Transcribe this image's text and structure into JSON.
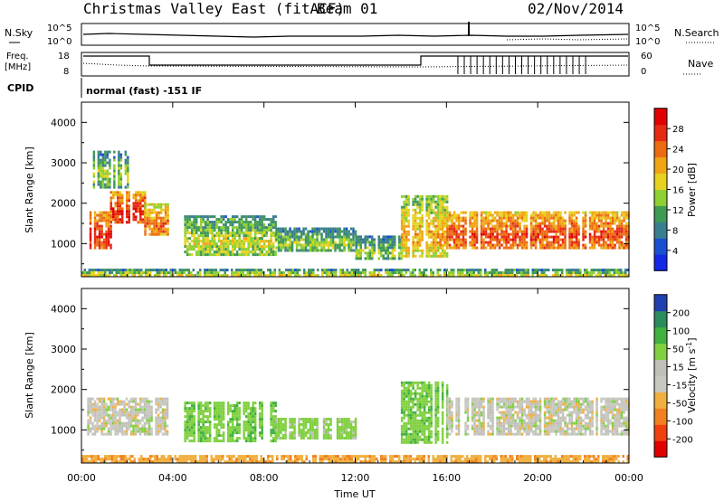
{
  "header": {
    "title": "Christmas Valley East (fitACF)",
    "beam": "Beam 01",
    "date": "02/Nov/2014"
  },
  "top_panels": {
    "noise": {
      "left_label": "N.Sky",
      "right_label": "N.Search",
      "left_ticks": [
        "10^5",
        "10^0"
      ],
      "right_ticks": [
        "10^5",
        "10^0"
      ]
    },
    "freq": {
      "left_label_line1": "Freq.",
      "left_label_line2": "[MHz]",
      "right_label": "Nave",
      "left_ticks": [
        "18",
        "8"
      ],
      "right_ticks": [
        "60",
        "0"
      ]
    },
    "cpid": {
      "label": "CPID",
      "text": "normal (fast) -151 IF"
    }
  },
  "chart_data": [
    {
      "type": "heatmap",
      "parameter": "Power",
      "ylabel": "Slant Range [km]",
      "xlabel": "",
      "ylim": [
        180,
        4500
      ],
      "yticks": [
        1000,
        2000,
        3000,
        4000
      ],
      "colorbar": {
        "label": "Power [dB]",
        "ticks": [
          "4",
          "8",
          "12",
          "16",
          "20",
          "24",
          "28"
        ],
        "colors": [
          "#1428e6",
          "#1a4fd2",
          "#3a7e8e",
          "#3f9a55",
          "#8fcf32",
          "#e6d21e",
          "#f0a514",
          "#ec6a10",
          "#e62a14",
          "#e00000"
        ]
      },
      "regions": [
        {
          "t0": 0.25,
          "t1": 1.25,
          "r0": 900,
          "r1": 1800,
          "value": 22
        },
        {
          "t0": 1.25,
          "t1": 2.75,
          "r0": 1500,
          "r1": 2300,
          "value": 22
        },
        {
          "t0": 2.75,
          "t1": 3.75,
          "r0": 1200,
          "r1": 2000,
          "value": 18
        },
        {
          "t0": 4.5,
          "t1": 8.5,
          "r0": 700,
          "r1": 1700,
          "value": 10
        },
        {
          "t0": 8.5,
          "t1": 12.0,
          "r0": 800,
          "r1": 1400,
          "value": 8
        },
        {
          "t0": 12.0,
          "t1": 14.0,
          "r0": 600,
          "r1": 1200,
          "value": 8
        },
        {
          "t0": 14.0,
          "t1": 16.0,
          "r0": 700,
          "r1": 2200,
          "value": 14
        },
        {
          "t0": 16.0,
          "t1": 24.0,
          "r0": 900,
          "r1": 1800,
          "value": 20
        },
        {
          "t0": 0.5,
          "t1": 2.0,
          "r0": 2400,
          "r1": 3300,
          "value": 8
        },
        {
          "t0": 0.0,
          "t1": 24.0,
          "r0": 180,
          "r1": 380,
          "value": 10
        }
      ]
    },
    {
      "type": "heatmap",
      "parameter": "Velocity",
      "ylabel": "Slant Range [km]",
      "xlabel": "Time UT",
      "ylim": [
        180,
        4500
      ],
      "yticks": [
        1000,
        2000,
        3000,
        4000
      ],
      "xticks": [
        "00:00",
        "04:00",
        "08:00",
        "12:00",
        "16:00",
        "20:00",
        "00:00"
      ],
      "xtick_hours": [
        0,
        4,
        8,
        12,
        16,
        20,
        24
      ],
      "colorbar": {
        "label_main": "Velocity [m s",
        "label_sup": "-1",
        "label_end": "]",
        "ticks": [
          "-200",
          "-100",
          "-50",
          "-15",
          "15",
          "50",
          "100",
          "200"
        ],
        "colors": [
          "#e00000",
          "#f04010",
          "#f08020",
          "#f0b040",
          "#c8c8c0",
          "#c0c0b8",
          "#80d040",
          "#40b040",
          "#2c8a5c",
          "#2040b0"
        ]
      },
      "regions": [
        {
          "t0": 0.25,
          "t1": 3.75,
          "r0": 900,
          "r1": 1800,
          "value": 0
        },
        {
          "t0": 4.5,
          "t1": 8.5,
          "r0": 700,
          "r1": 1700,
          "value": 40
        },
        {
          "t0": 8.5,
          "t1": 12.0,
          "r0": 800,
          "r1": 1300,
          "value": 30
        },
        {
          "t0": 14.0,
          "t1": 16.0,
          "r0": 700,
          "r1": 2200,
          "value": 40
        },
        {
          "t0": 16.0,
          "t1": 24.0,
          "r0": 900,
          "r1": 1800,
          "value": 0
        },
        {
          "t0": 0.0,
          "t1": 24.0,
          "r0": 180,
          "r1": 380,
          "value": -40
        }
      ]
    }
  ]
}
